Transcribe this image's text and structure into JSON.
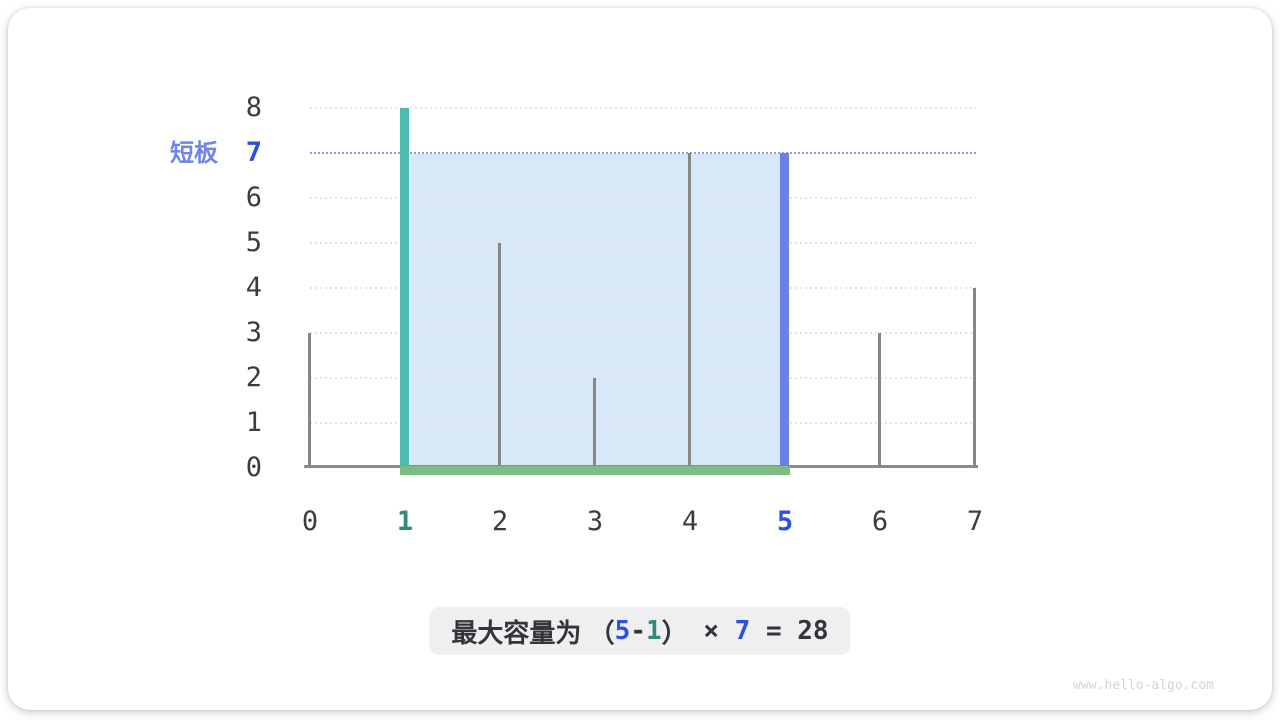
{
  "watermark": "www.hello-algo.com",
  "annotation": {
    "short_board_label": "短板"
  },
  "caption": {
    "prefix": "最大容量为 ",
    "open_paren": "（",
    "right_index": "5",
    "minus": "-",
    "left_index": "1",
    "close_paren": "）",
    "times": " × ",
    "water_height": "7",
    "equals": " = ",
    "result": "28"
  },
  "chart_data": {
    "type": "bar",
    "x": [
      0,
      1,
      2,
      3,
      4,
      5,
      6,
      7
    ],
    "heights": [
      3,
      8,
      5,
      2,
      7,
      7,
      3,
      4
    ],
    "xticks": [
      "0",
      "1",
      "2",
      "3",
      "4",
      "5",
      "6",
      "7"
    ],
    "yticks": [
      "0",
      "1",
      "2",
      "3",
      "4",
      "5",
      "6",
      "7",
      "8"
    ],
    "xlim": [
      0,
      7
    ],
    "ylim": [
      0,
      8
    ],
    "grid": true,
    "left_pointer_index": 1,
    "right_pointer_index": 5,
    "water_level": 7,
    "capacity": 28,
    "colors": {
      "left_pointer_bar": "#4cbcae",
      "right_pointer_bar": "#6a80e4",
      "left_pointer_text": "#338b80",
      "right_pointer_text": "#2b50df",
      "water_area": "#d9e8f8",
      "water_level_line": "#8d9ce8",
      "base_highlight": "#7cbb84",
      "bar_gray": "#868686",
      "axis_line": "#8c8c8c",
      "grid_gray": "#e3e3e3",
      "axis_text": "#3c3c3c",
      "short_board_text": "#6e84e8"
    }
  }
}
